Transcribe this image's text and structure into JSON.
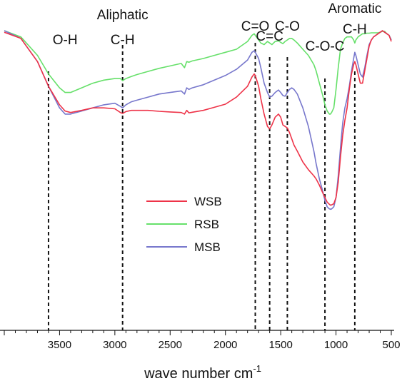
{
  "chart_data": {
    "type": "line",
    "xlabel": "wave number cm",
    "xlabel_sup": "-1",
    "xlim": [
      4000,
      500
    ],
    "x_reversed": true,
    "xticks": [
      3500,
      3000,
      2500,
      2000,
      1500,
      1000,
      500
    ],
    "y_axis_shown": false,
    "grid": false,
    "legend_position": "center",
    "series": [
      {
        "name": "WSB",
        "color": "#ee3348",
        "x": [
          4000,
          3850,
          3700,
          3600,
          3500,
          3450,
          3400,
          3300,
          3200,
          3100,
          3000,
          2950,
          2930,
          2900,
          2850,
          2800,
          2700,
          2600,
          2500,
          2400,
          2370,
          2350,
          2330,
          2300,
          2200,
          2100,
          2000,
          1900,
          1800,
          1760,
          1740,
          1730,
          1700,
          1680,
          1650,
          1620,
          1600,
          1580,
          1550,
          1520,
          1500,
          1480,
          1460,
          1440,
          1420,
          1400,
          1380,
          1350,
          1300,
          1250,
          1200,
          1180,
          1150,
          1120,
          1100,
          1080,
          1060,
          1050,
          1040,
          1020,
          1000,
          980,
          960,
          940,
          920,
          900,
          880,
          860,
          840,
          830,
          820,
          800,
          780,
          760,
          740,
          720,
          700,
          680,
          660,
          640,
          620,
          600,
          580,
          560,
          540,
          520,
          500
        ],
        "y": [
          0.965,
          0.945,
          0.87,
          0.79,
          0.73,
          0.71,
          0.705,
          0.712,
          0.72,
          0.72,
          0.717,
          0.705,
          0.702,
          0.708,
          0.712,
          0.712,
          0.712,
          0.709,
          0.707,
          0.705,
          0.7,
          0.712,
          0.704,
          0.706,
          0.712,
          0.722,
          0.732,
          0.755,
          0.79,
          0.82,
          0.83,
          0.825,
          0.79,
          0.75,
          0.7,
          0.66,
          0.652,
          0.665,
          0.69,
          0.7,
          0.69,
          0.665,
          0.66,
          0.655,
          0.64,
          0.62,
          0.6,
          0.58,
          0.545,
          0.52,
          0.5,
          0.49,
          0.47,
          0.445,
          0.43,
          0.415,
          0.408,
          0.405,
          0.406,
          0.41,
          0.43,
          0.48,
          0.56,
          0.63,
          0.68,
          0.72,
          0.78,
          0.83,
          0.86,
          0.87,
          0.86,
          0.83,
          0.8,
          0.8,
          0.84,
          0.88,
          0.92,
          0.94,
          0.95,
          0.955,
          0.96,
          0.965,
          0.97,
          0.965,
          0.96,
          0.955,
          0.935
        ]
      },
      {
        "name": "RSB",
        "color": "#66e06a",
        "x": [
          4000,
          3850,
          3700,
          3600,
          3500,
          3450,
          3400,
          3300,
          3200,
          3100,
          3000,
          2950,
          2930,
          2900,
          2850,
          2800,
          2700,
          2600,
          2500,
          2400,
          2370,
          2350,
          2330,
          2300,
          2200,
          2100,
          2000,
          1900,
          1800,
          1760,
          1740,
          1730,
          1700,
          1680,
          1650,
          1620,
          1600,
          1580,
          1550,
          1520,
          1500,
          1480,
          1460,
          1440,
          1420,
          1400,
          1380,
          1350,
          1300,
          1250,
          1200,
          1180,
          1150,
          1120,
          1100,
          1080,
          1060,
          1050,
          1040,
          1020,
          1000,
          980,
          960,
          940,
          920,
          900,
          880,
          860,
          840,
          830,
          820,
          800,
          780,
          760,
          740,
          720,
          700,
          680,
          660,
          640,
          620,
          600,
          580,
          560,
          540,
          520,
          500
        ],
        "y": [
          0.97,
          0.95,
          0.89,
          0.83,
          0.785,
          0.77,
          0.77,
          0.785,
          0.8,
          0.81,
          0.815,
          0.815,
          0.808,
          0.815,
          0.822,
          0.828,
          0.838,
          0.848,
          0.856,
          0.864,
          0.85,
          0.87,
          0.868,
          0.872,
          0.88,
          0.89,
          0.9,
          0.91,
          0.935,
          0.955,
          0.96,
          0.955,
          0.94,
          0.93,
          0.925,
          0.935,
          0.93,
          0.925,
          0.935,
          0.937,
          0.932,
          0.928,
          0.935,
          0.94,
          0.945,
          0.945,
          0.94,
          0.93,
          0.91,
          0.89,
          0.86,
          0.84,
          0.8,
          0.76,
          0.73,
          0.71,
          0.7,
          0.7,
          0.705,
          0.72,
          0.78,
          0.85,
          0.91,
          0.93,
          0.945,
          0.95,
          0.95,
          0.95,
          0.94,
          0.93,
          0.94,
          0.95,
          0.955,
          0.96,
          0.96,
          0.962,
          0.962,
          0.963,
          0.963,
          0.963,
          0.963,
          0.965,
          0.968,
          0.968,
          0.96,
          0.955,
          0.94
        ]
      },
      {
        "name": "MSB",
        "color": "#7777cc",
        "x": [
          4000,
          3850,
          3700,
          3600,
          3500,
          3450,
          3400,
          3300,
          3200,
          3100,
          3000,
          2950,
          2930,
          2900,
          2850,
          2800,
          2700,
          2600,
          2500,
          2400,
          2370,
          2350,
          2330,
          2300,
          2200,
          2100,
          2000,
          1900,
          1800,
          1760,
          1740,
          1730,
          1700,
          1680,
          1650,
          1620,
          1600,
          1580,
          1550,
          1520,
          1500,
          1480,
          1460,
          1440,
          1420,
          1400,
          1380,
          1350,
          1300,
          1250,
          1200,
          1180,
          1150,
          1120,
          1100,
          1080,
          1060,
          1050,
          1040,
          1020,
          1000,
          980,
          960,
          940,
          920,
          900,
          880,
          860,
          840,
          830,
          820,
          800,
          780,
          760,
          740,
          720,
          700,
          680,
          660,
          640,
          620,
          600,
          580,
          560,
          540,
          520,
          500
        ],
        "y": [
          0.97,
          0.945,
          0.87,
          0.79,
          0.72,
          0.7,
          0.7,
          0.71,
          0.72,
          0.73,
          0.735,
          0.725,
          0.72,
          0.73,
          0.74,
          0.745,
          0.755,
          0.765,
          0.77,
          0.775,
          0.765,
          0.785,
          0.78,
          0.785,
          0.795,
          0.81,
          0.825,
          0.845,
          0.875,
          0.9,
          0.905,
          0.9,
          0.88,
          0.85,
          0.8,
          0.77,
          0.755,
          0.758,
          0.77,
          0.778,
          0.77,
          0.76,
          0.758,
          0.77,
          0.78,
          0.785,
          0.78,
          0.765,
          0.72,
          0.66,
          0.58,
          0.54,
          0.49,
          0.45,
          0.42,
          0.4,
          0.393,
          0.392,
          0.393,
          0.4,
          0.43,
          0.5,
          0.59,
          0.67,
          0.72,
          0.75,
          0.79,
          0.84,
          0.88,
          0.9,
          0.89,
          0.86,
          0.83,
          0.82,
          0.85,
          0.89,
          0.925,
          0.94,
          0.95,
          0.955,
          0.96,
          0.965,
          0.97,
          0.965,
          0.96,
          0.955,
          0.94
        ]
      }
    ],
    "reference_lines": [
      3600,
      2930,
      1730,
      1600,
      1440,
      1100,
      830
    ],
    "annotations": [
      {
        "text": "O-H",
        "x": 3450
      },
      {
        "text": "Aliphatic",
        "x": 2930
      },
      {
        "text": "C-H",
        "x": 2930
      },
      {
        "text": "C=O",
        "x": 1730
      },
      {
        "text": "C=C",
        "x": 1600
      },
      {
        "text": "C-O",
        "x": 1440
      },
      {
        "text": "C-O-C",
        "x": 1100
      },
      {
        "text": "Aromatic",
        "x": 830
      },
      {
        "text": "C-H",
        "x": 830
      }
    ]
  }
}
